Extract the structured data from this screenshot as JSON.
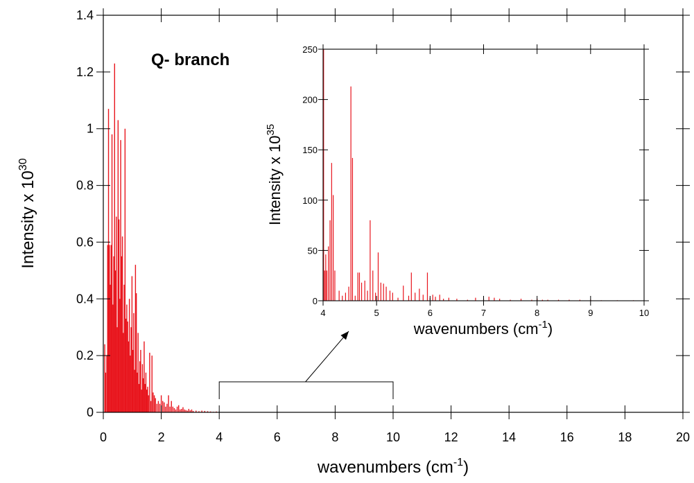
{
  "chart_data": [
    {
      "type": "bar",
      "title": "",
      "annotation": "Q- branch",
      "xlabel": {
        "main": "wavenumbers (cm",
        "sup": "-1",
        "tail": ")"
      },
      "ylabel": {
        "main": "Intensity x 10",
        "sup": "30"
      },
      "xlim": [
        0,
        20
      ],
      "ylim": [
        0,
        1.4
      ],
      "xticks": [
        "0",
        "2",
        "4",
        "6",
        "8",
        "10",
        "12",
        "14",
        "16",
        "18",
        "20"
      ],
      "yticks": [
        "0",
        "0.2",
        "0.4",
        "0.6",
        "0.8",
        "1",
        "1.2",
        "1.4"
      ],
      "line_color": "#e8141c",
      "x": [
        0.05,
        0.08,
        0.12,
        0.15,
        0.18,
        0.21,
        0.24,
        0.27,
        0.3,
        0.33,
        0.36,
        0.39,
        0.42,
        0.45,
        0.48,
        0.51,
        0.54,
        0.57,
        0.6,
        0.63,
        0.66,
        0.69,
        0.72,
        0.75,
        0.78,
        0.81,
        0.84,
        0.87,
        0.9,
        0.93,
        0.96,
        0.99,
        1.02,
        1.05,
        1.08,
        1.11,
        1.14,
        1.17,
        1.2,
        1.23,
        1.26,
        1.29,
        1.32,
        1.35,
        1.38,
        1.41,
        1.44,
        1.47,
        1.5,
        1.53,
        1.56,
        1.6,
        1.64,
        1.68,
        1.72,
        1.76,
        1.8,
        1.85,
        1.9,
        1.95,
        2.0,
        2.05,
        2.1,
        2.15,
        2.2,
        2.25,
        2.3,
        2.35,
        2.4,
        2.45,
        2.5,
        2.55,
        2.6,
        2.65,
        2.7,
        2.75,
        2.8,
        2.85,
        2.9,
        2.95,
        3.0,
        3.05,
        3.1,
        3.2,
        3.3,
        3.4,
        3.5,
        3.6,
        3.7,
        3.8,
        3.9,
        4.0,
        4.3,
        4.6,
        5.0,
        5.5,
        6.0,
        6.5,
        7.0,
        8.0,
        9.0,
        10.0
      ],
      "values": [
        0.24,
        0.14,
        0.2,
        0.59,
        1.07,
        0.59,
        0.45,
        0.59,
        0.98,
        0.38,
        0.55,
        1.23,
        0.5,
        0.69,
        0.3,
        1.03,
        0.68,
        0.4,
        0.96,
        0.55,
        0.62,
        0.28,
        0.45,
        1.0,
        0.33,
        0.38,
        0.32,
        0.25,
        0.4,
        0.2,
        0.3,
        0.48,
        0.22,
        0.35,
        0.15,
        0.52,
        0.42,
        0.14,
        0.28,
        0.1,
        0.18,
        0.22,
        0.08,
        0.17,
        0.12,
        0.25,
        0.1,
        0.14,
        0.08,
        0.09,
        0.06,
        0.21,
        0.04,
        0.2,
        0.07,
        0.06,
        0.05,
        0.03,
        0.04,
        0.03,
        0.06,
        0.04,
        0.035,
        0.02,
        0.03,
        0.06,
        0.02,
        0.04,
        0.02,
        0.015,
        0.01,
        0.02,
        0.025,
        0.01,
        0.012,
        0.018,
        0.01,
        0.008,
        0.006,
        0.012,
        0.007,
        0.01,
        0.005,
        0.006,
        0.004,
        0.006,
        0.005,
        0.004,
        0.003,
        0.002,
        0.003,
        0.001,
        0.001,
        0.001,
        0.001,
        0.001,
        0.001,
        0.001,
        0.001,
        0.001,
        0.001,
        0.001
      ],
      "bracket": {
        "x_from": 4,
        "x_to": 10
      }
    },
    {
      "type": "bar",
      "title": "",
      "xlabel": {
        "main": "wavenumbers (cm",
        "sup": "-1",
        "tail": ")"
      },
      "ylabel": {
        "main": "Intensity x  10",
        "sup": "35"
      },
      "xlim": [
        4,
        10
      ],
      "ylim": [
        0,
        250
      ],
      "xticks": [
        "4",
        "5",
        "6",
        "7",
        "8",
        "9",
        "10"
      ],
      "yticks": [
        "0",
        "50",
        "100",
        "150",
        "200",
        "250"
      ],
      "line_color": "#e8141c",
      "x": [
        4.01,
        4.03,
        4.05,
        4.07,
        4.1,
        4.13,
        4.16,
        4.19,
        4.22,
        4.3,
        4.36,
        4.42,
        4.48,
        4.52,
        4.55,
        4.6,
        4.65,
        4.68,
        4.72,
        4.78,
        4.83,
        4.88,
        4.93,
        4.98,
        5.03,
        5.08,
        5.13,
        5.18,
        5.25,
        5.3,
        5.4,
        5.5,
        5.6,
        5.65,
        5.72,
        5.8,
        5.87,
        5.95,
        6.0,
        6.05,
        6.1,
        6.18,
        6.25,
        6.35,
        6.5,
        6.7,
        6.85,
        7.0,
        7.1,
        7.2,
        7.3,
        7.5,
        7.7,
        7.9,
        8.0,
        8.1,
        8.2,
        8.4,
        8.6,
        8.8,
        9.0,
        9.2,
        9.5,
        9.8
      ],
      "values": [
        250,
        30,
        46,
        30,
        54,
        80,
        137,
        105,
        30,
        10,
        5,
        8,
        14,
        213,
        142,
        5,
        28,
        28,
        18,
        20,
        10,
        80,
        30,
        8,
        48,
        18,
        17,
        14,
        10,
        8,
        3,
        15,
        5,
        28,
        8,
        12,
        6,
        28,
        3,
        6,
        4,
        6,
        2,
        3,
        2,
        1,
        3,
        2,
        4,
        3,
        2,
        1,
        2,
        1,
        2,
        1,
        1,
        1,
        1,
        1,
        1,
        0.5,
        0.5,
        0.5
      ]
    }
  ]
}
